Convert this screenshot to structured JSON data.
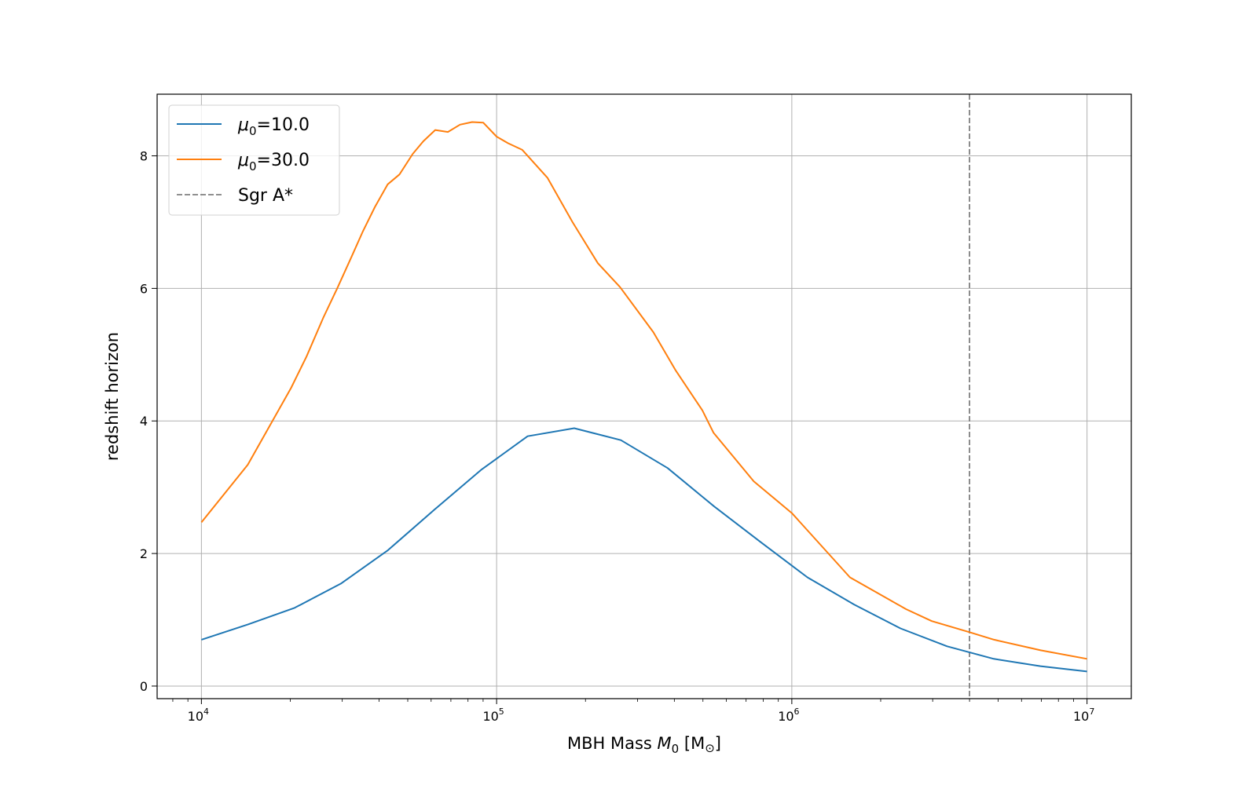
{
  "chart_data": {
    "type": "line",
    "title": "",
    "xlabel": "MBH Mass M0 [M☉]",
    "xlabel_parts": {
      "pre": "MBH Mass ",
      "sym": "M",
      "sub": "0",
      "post_open": " [M",
      "sun": "⊙",
      "post_close": "]"
    },
    "ylabel": "redshift horizon",
    "xscale": "log",
    "xlim_log10": [
      3.85,
      7.15
    ],
    "ylim": [
      -0.19,
      8.93
    ],
    "grid": true,
    "legend_position": "top-left",
    "xticks": [
      {
        "exp": 4,
        "base": "10",
        "sup": "4"
      },
      {
        "exp": 5,
        "base": "10",
        "sup": "5"
      },
      {
        "exp": 6,
        "base": "10",
        "sup": "6"
      },
      {
        "exp": 7,
        "base": "10",
        "sup": "7"
      }
    ],
    "yticks": [
      0,
      2,
      4,
      6,
      8
    ],
    "series": [
      {
        "name": "μ0=10.0",
        "label_sym": "μ",
        "label_sub": "0",
        "label_rest": "=10.0",
        "color": "#1f77b4",
        "style": "solid",
        "log10_x": [
          4.0,
          4.158,
          4.316,
          4.474,
          4.632,
          4.789,
          4.947,
          5.105,
          5.263,
          5.421,
          5.579,
          5.737,
          5.895,
          6.053,
          6.211,
          6.368,
          6.526,
          6.684,
          6.842,
          7.0
        ],
        "y": [
          0.7,
          0.93,
          1.18,
          1.55,
          2.05,
          2.66,
          3.26,
          3.77,
          3.89,
          3.71,
          3.29,
          2.71,
          2.17,
          1.64,
          1.23,
          0.87,
          0.6,
          0.41,
          0.3,
          0.22
        ]
      },
      {
        "name": "μ0=30.0",
        "label_sym": "μ",
        "label_sub": "0",
        "label_rest": "=30.0",
        "color": "#ff7f0e",
        "style": "solid",
        "log10_x": [
          4.0,
          4.157,
          4.242,
          4.304,
          4.356,
          4.413,
          4.46,
          4.508,
          4.546,
          4.588,
          4.631,
          4.671,
          4.716,
          4.752,
          4.792,
          4.835,
          4.876,
          4.917,
          4.955,
          5.0,
          5.039,
          5.087,
          5.172,
          5.257,
          5.343,
          5.418,
          5.531,
          5.607,
          5.697,
          5.735,
          5.871,
          6.0,
          6.197,
          6.387,
          6.474,
          6.604,
          6.685,
          6.843,
          7.0
        ],
        "y": [
          2.47,
          3.34,
          4.01,
          4.5,
          4.97,
          5.56,
          6.0,
          6.47,
          6.85,
          7.23,
          7.57,
          7.72,
          8.03,
          8.22,
          8.39,
          8.36,
          8.47,
          8.51,
          8.5,
          8.29,
          8.19,
          8.09,
          7.67,
          7.0,
          6.38,
          6.02,
          5.34,
          4.76,
          4.16,
          3.82,
          3.09,
          2.61,
          1.64,
          1.16,
          0.98,
          0.81,
          0.7,
          0.54,
          0.41
        ]
      }
    ],
    "vlines": [
      {
        "name": "Sgr A*",
        "value": 4000000,
        "log10_x": 6.602,
        "color": "#808080",
        "style": "dashed"
      }
    ]
  }
}
